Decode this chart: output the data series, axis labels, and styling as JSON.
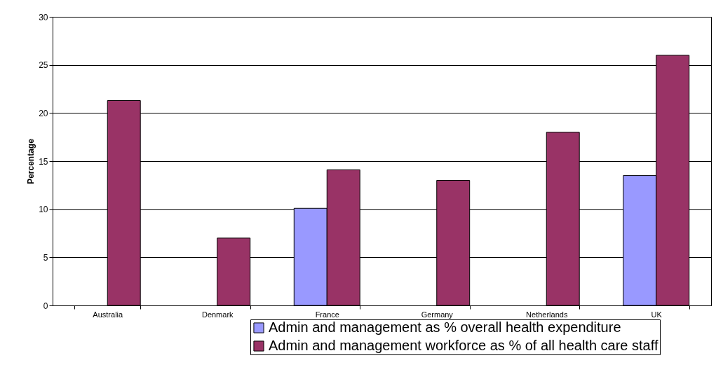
{
  "chart_data": {
    "type": "bar",
    "ylabel": "Percentage",
    "categories": [
      "Australia",
      "Denmark",
      "France",
      "Germany",
      "Netherlands",
      "UK"
    ],
    "series": [
      {
        "name": "Admin and management as % overall health expenditure",
        "color": "#9999ff",
        "values": [
          null,
          null,
          10.1,
          null,
          null,
          13.5
        ]
      },
      {
        "name": "Admin and management workforce as % of all health care staff",
        "color": "#993366",
        "values": [
          21.3,
          7,
          14.1,
          13,
          18,
          26
        ]
      }
    ],
    "ylim": [
      0,
      30
    ],
    "yticks": [
      0,
      5,
      10,
      15,
      20,
      25,
      30
    ],
    "grid": "y",
    "legend": "bottom"
  }
}
